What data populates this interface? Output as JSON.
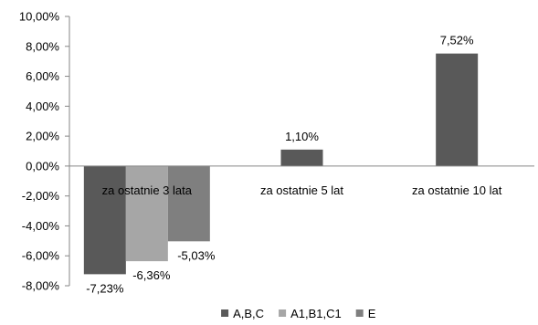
{
  "chart_data": {
    "type": "bar",
    "categories": [
      "za ostatnie  3 lata",
      "za ostatnie  5 lat",
      "za ostatnie  10 lat"
    ],
    "series": [
      {
        "name": "A,B,C",
        "color": "#595959",
        "values": [
          -7.23,
          1.1,
          7.52
        ],
        "labels": [
          "-7,23%",
          "1,10%",
          "7,52%"
        ]
      },
      {
        "name": "A1,B1,C1",
        "color": "#a6a6a6",
        "values": [
          -6.36,
          null,
          null
        ],
        "labels": [
          "-6,36%",
          "",
          ""
        ]
      },
      {
        "name": "E",
        "color": "#7f7f7f",
        "values": [
          -5.03,
          null,
          null
        ],
        "labels": [
          "-5,03%",
          "",
          ""
        ]
      }
    ],
    "ylim": [
      -8,
      10
    ],
    "yticks": [
      10,
      8,
      6,
      4,
      2,
      0,
      -2,
      -4,
      -6,
      -8
    ],
    "ytick_labels": [
      "10,00%",
      "8,00%",
      "6,00%",
      "4,00%",
      "2,00%",
      "0,00%",
      "-2,00%",
      "-4,00%",
      "-6,00%",
      "-8,00%"
    ],
    "legend_position": "bottom",
    "grid": false
  }
}
